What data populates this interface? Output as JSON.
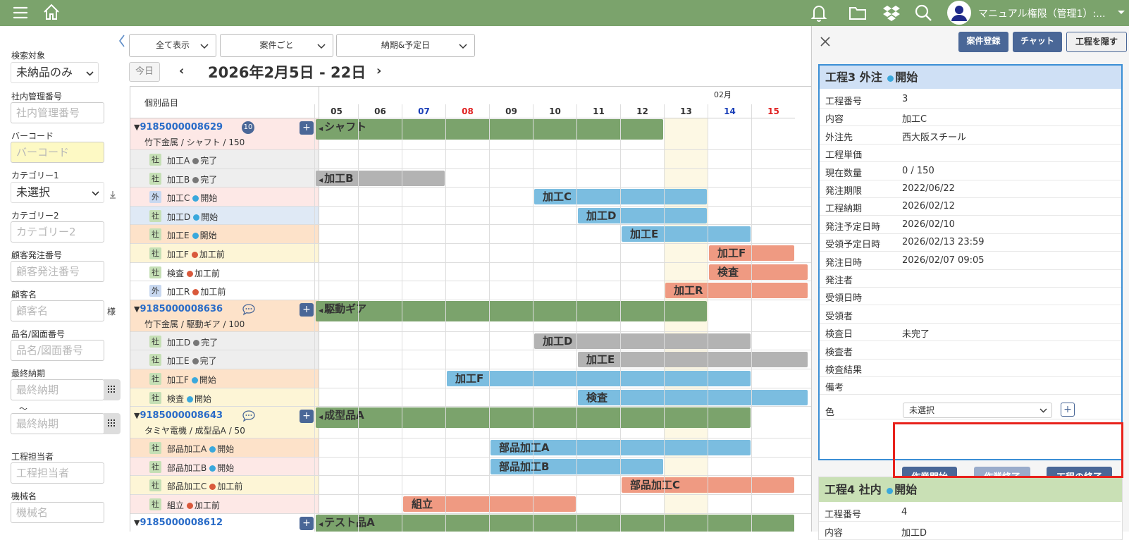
{
  "topbar": {
    "user_name": "マニュアル権限（管理1）:..."
  },
  "filters": {
    "search_target": {
      "label": "検索対象",
      "value": "未納品のみ"
    },
    "internal_no": {
      "label": "社内管理番号",
      "placeholder": "社内管理番号"
    },
    "barcode": {
      "label": "バーコード",
      "placeholder": "バーコード"
    },
    "category1": {
      "label": "カテゴリー1",
      "value": "未選択"
    },
    "category2": {
      "label": "カテゴリー2",
      "placeholder": "カテゴリー2"
    },
    "customer_order": {
      "label": "顧客発注番号",
      "placeholder": "顧客発注番号"
    },
    "customer": {
      "label": "顧客名",
      "placeholder": "顧客名",
      "suffix": "様"
    },
    "product": {
      "label": "品名/図面番号",
      "placeholder": "品名/図面番号"
    },
    "final_due": {
      "label": "最終納期",
      "from_placeholder": "最終納期",
      "tilde": "〜",
      "to_placeholder": "最終納期"
    },
    "assignee": {
      "label": "工程担当者",
      "placeholder": "工程担当者"
    },
    "machine": {
      "label": "機械名",
      "placeholder": "機械名"
    }
  },
  "toolbar": {
    "view_all": "全て表示",
    "per_case": "案件ごと",
    "due_plan": "納期&予定日",
    "today": "今日",
    "range": "2026年2月5日 - 22日",
    "prev": "‹",
    "next": "›"
  },
  "gantt": {
    "items_header": "個別品目",
    "month": "02月",
    "days": [
      {
        "d": "05",
        "color": "#333333"
      },
      {
        "d": "06",
        "color": "#333333"
      },
      {
        "d": "07",
        "color": "#1a3fb8"
      },
      {
        "d": "08",
        "color": "#e02020"
      },
      {
        "d": "09",
        "color": "#333333"
      },
      {
        "d": "10",
        "color": "#333333"
      },
      {
        "d": "11",
        "color": "#333333"
      },
      {
        "d": "12",
        "color": "#333333"
      },
      {
        "d": "13",
        "color": "#333333"
      },
      {
        "d": "14",
        "color": "#1a3fb8"
      },
      {
        "d": "15",
        "color": "#e02020"
      }
    ],
    "rows": [
      {
        "type": "parent",
        "num": "9185000008629",
        "desc": "竹下金属 / シャフト / 150",
        "badge": "10",
        "bg": "#fde8e6",
        "bar": {
          "label": "シャフト",
          "start": 0,
          "end": 8,
          "color": "#7ba36c"
        }
      },
      {
        "type": "proc",
        "tag": "社",
        "name": "加工A",
        "status": "完了",
        "bg": "#eeeeee"
      },
      {
        "type": "proc",
        "tag": "社",
        "name": "加工B",
        "status": "完了",
        "bg": "#eeeeee",
        "bar": {
          "label": "加工B",
          "start": 0,
          "end": 3,
          "color": "#b3b3b3"
        }
      },
      {
        "type": "proc",
        "tag": "外",
        "name": "加工C",
        "status": "開始",
        "bg": "#fde8e6",
        "bar": {
          "label": "加工C",
          "start": 5,
          "end": 9,
          "color": "#7bbde0"
        }
      },
      {
        "type": "proc",
        "tag": "社",
        "name": "加工D",
        "status": "開始",
        "bg": "#dfe9f5",
        "bar": {
          "label": "加工D",
          "start": 6,
          "end": 9,
          "color": "#7bbde0"
        }
      },
      {
        "type": "proc",
        "tag": "社",
        "name": "加工E",
        "status": "開始",
        "bg": "#fde2c9",
        "bar": {
          "label": "加工E",
          "start": 7,
          "end": 10,
          "color": "#7bbde0"
        }
      },
      {
        "type": "proc",
        "tag": "社",
        "name": "加工F",
        "status": "加工前",
        "bg": "#fdf5d6",
        "bar": {
          "label": "加工F",
          "start": 9,
          "end": 11,
          "color": "#ef9a82"
        }
      },
      {
        "type": "proc",
        "tag": "社",
        "name": "検査",
        "status": "加工前",
        "bg": "#ffffff",
        "bar": {
          "label": "検査",
          "start": 9,
          "end": 11.3,
          "color": "#ef9a82"
        }
      },
      {
        "type": "proc",
        "tag": "外",
        "name": "加工R",
        "status": "加工前",
        "bg": "#ffffff",
        "bar": {
          "label": "加工R",
          "start": 8,
          "end": 11.3,
          "color": "#ef9a82"
        }
      },
      {
        "type": "parent",
        "num": "9185000008636",
        "desc": "竹下金属 / 駆動ギア / 100",
        "chat": true,
        "bg": "#fde2c9",
        "bar": {
          "label": "駆動ギア",
          "start": 0,
          "end": 9,
          "color": "#7ba36c"
        }
      },
      {
        "type": "proc",
        "tag": "社",
        "name": "加工D",
        "status": "完了",
        "bg": "#eeeeee",
        "bar": {
          "label": "加工D",
          "start": 5,
          "end": 10,
          "color": "#b3b3b3"
        }
      },
      {
        "type": "proc",
        "tag": "社",
        "name": "加工E",
        "status": "完了",
        "bg": "#eeeeee",
        "bar": {
          "label": "加工E",
          "start": 6,
          "end": 11.3,
          "color": "#b3b3b3"
        }
      },
      {
        "type": "proc",
        "tag": "社",
        "name": "加工F",
        "status": "開始",
        "bg": "#fde2c9",
        "bar": {
          "label": "加工F",
          "start": 3,
          "end": 10,
          "color": "#7bbde0"
        }
      },
      {
        "type": "proc",
        "tag": "社",
        "name": "検査",
        "status": "開始",
        "bg": "#fdf5d6",
        "bar": {
          "label": "検査",
          "start": 6,
          "end": 11.3,
          "color": "#7bbde0"
        }
      },
      {
        "type": "parent",
        "num": "9185000008643",
        "desc": "タミヤ電機 / 成型品A / 50",
        "chat": true,
        "bg": "#fdf5d6",
        "bar": {
          "label": "成型品A",
          "start": 0,
          "end": 10,
          "color": "#7ba36c"
        }
      },
      {
        "type": "proc",
        "tag": "社",
        "name": "部品加工A",
        "status": "開始",
        "bg": "#fde2c9",
        "bar": {
          "label": "部品加工A",
          "start": 4,
          "end": 10,
          "color": "#7bbde0"
        }
      },
      {
        "type": "proc",
        "tag": "社",
        "name": "部品加工B",
        "status": "開始",
        "bg": "#fde8e6",
        "bar": {
          "label": "部品加工B",
          "start": 4,
          "end": 8,
          "color": "#7bbde0"
        }
      },
      {
        "type": "proc",
        "tag": "社",
        "name": "部品加工C",
        "status": "加工前",
        "bg": "#fdf5d6",
        "bar": {
          "label": "部品加工C",
          "start": 7,
          "end": 11,
          "color": "#ef9a82"
        }
      },
      {
        "type": "proc",
        "tag": "社",
        "name": "組立",
        "status": "加工前",
        "bg": "#fde8e6",
        "bar": {
          "label": "組立",
          "start": 2,
          "end": 6,
          "color": "#ef9a82"
        }
      },
      {
        "type": "parent",
        "num": "9185000008612",
        "desc": "",
        "bg": "#ffffff",
        "bar": {
          "label": "テスト品A",
          "start": 0,
          "end": 11,
          "color": "#7ba36c"
        }
      }
    ]
  },
  "panel": {
    "register": "案件登録",
    "chat": "チャット",
    "hide": "工程を隠す",
    "card3": {
      "title": "工程3 外注",
      "status": "開始",
      "fields": [
        {
          "k": "工程番号",
          "v": "3"
        },
        {
          "k": "内容",
          "v": "加工C"
        },
        {
          "k": "外注先",
          "v": "西大阪スチール"
        },
        {
          "k": "工程単価",
          "v": ""
        },
        {
          "k": "現在数量",
          "v": "0 / 150"
        },
        {
          "k": "発注期限",
          "v": "2022/06/22"
        },
        {
          "k": "工程納期",
          "v": "2026/02/12"
        },
        {
          "k": "発注予定日時",
          "v": "2026/02/10"
        },
        {
          "k": "受領予定日時",
          "v": "2026/02/13 23:59"
        },
        {
          "k": "発注日時",
          "v": "2026/02/07 09:05"
        },
        {
          "k": "発注者",
          "v": ""
        },
        {
          "k": "受領日時",
          "v": ""
        },
        {
          "k": "受領者",
          "v": ""
        },
        {
          "k": "検査日",
          "v": "未完了"
        },
        {
          "k": "検査者",
          "v": ""
        },
        {
          "k": "検査結果",
          "v": ""
        },
        {
          "k": "備考",
          "v": ""
        }
      ],
      "color_label": "色",
      "color_value": "未選択",
      "start_work": "作業開始",
      "end_work": "作業終了",
      "end_process": "工程の終了"
    },
    "card4": {
      "title": "工程4 社内",
      "status": "開始",
      "fields": [
        {
          "k": "工程番号",
          "v": "4"
        },
        {
          "k": "内容",
          "v": "加工D"
        }
      ]
    }
  },
  "colors": {
    "topbar": "#7ba36c",
    "accent": "#4a6797",
    "start_dot": "#3aa8dc",
    "done_dot": "#777777",
    "pre_dot": "#d9593c",
    "highlight": "#e8221c"
  }
}
